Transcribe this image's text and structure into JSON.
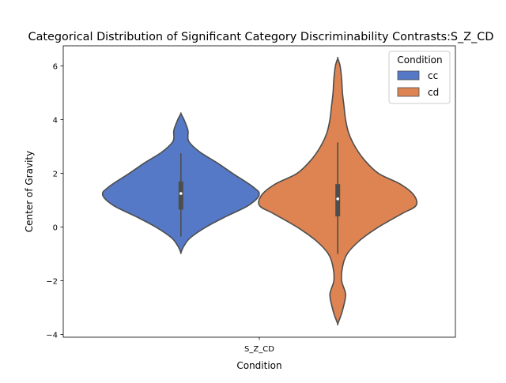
{
  "chart_data": {
    "type": "violin",
    "title": "Categorical Distribution of Significant Category Discriminability Contrasts:S_Z_CD",
    "xlabel": "Condition",
    "ylabel": "Center of Gravity",
    "categories": [
      "S_Z_CD"
    ],
    "ylim": [
      -4.1,
      6.75
    ],
    "yticks": [
      -4,
      -2,
      0,
      2,
      4,
      6
    ],
    "grid": false,
    "legend": {
      "title": "Condition",
      "placement": "top-right"
    },
    "series": [
      {
        "name": "cc",
        "color": "#5579c6",
        "median": 1.25,
        "q1": 0.65,
        "q3": 1.7,
        "whisker_low": -0.35,
        "whisker_high": 2.75,
        "density_y": [
          -0.95,
          -0.7,
          -0.4,
          0.0,
          0.4,
          0.8,
          1.2,
          1.5,
          2.0,
          2.4,
          2.8,
          3.2,
          3.6,
          4.0,
          4.22
        ],
        "density_width": [
          0.0,
          0.04,
          0.12,
          0.32,
          0.58,
          0.86,
          1.0,
          0.92,
          0.66,
          0.46,
          0.24,
          0.1,
          0.09,
          0.04,
          0.0
        ]
      },
      {
        "name": "cd",
        "color": "#dd8452",
        "median": 1.05,
        "q1": 0.4,
        "q3": 1.6,
        "whisker_low": -1.0,
        "whisker_high": 3.15,
        "density_y": [
          -3.6,
          -3.3,
          -3.0,
          -2.5,
          -2.0,
          -1.5,
          -1.0,
          -0.5,
          0.0,
          0.5,
          0.8,
          1.2,
          1.6,
          2.0,
          2.5,
          3.0,
          3.5,
          4.0,
          4.5,
          5.0,
          5.5,
          6.0,
          6.28
        ],
        "density_width": [
          0.0,
          0.04,
          0.07,
          0.1,
          0.05,
          0.06,
          0.12,
          0.28,
          0.52,
          0.82,
          1.0,
          0.97,
          0.8,
          0.52,
          0.34,
          0.22,
          0.14,
          0.1,
          0.08,
          0.06,
          0.05,
          0.03,
          0.0
        ]
      }
    ]
  }
}
